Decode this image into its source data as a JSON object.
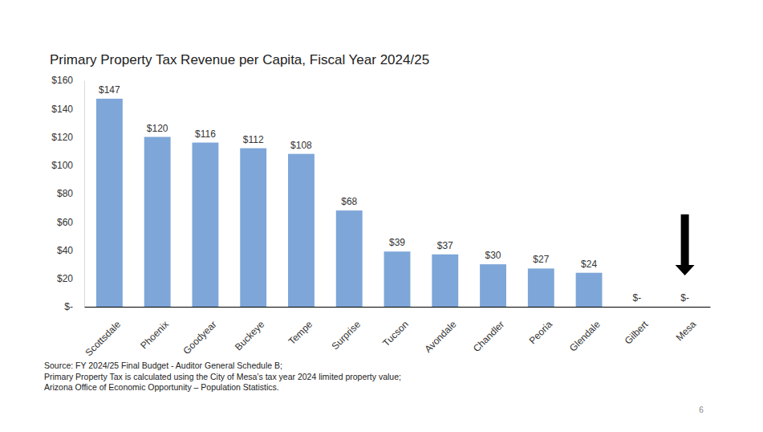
{
  "chart_data": {
    "type": "bar",
    "title": "Primary Property Tax Revenue per Capita, Fiscal Year 2024/25",
    "categories": [
      "Scottsdale",
      "Phoenix",
      "Goodyear",
      "Buckeye",
      "Tempe",
      "Surprise",
      "Tucson",
      "Avondale",
      "Chandler",
      "Peoria",
      "Glendale",
      "Gilbert",
      "Mesa"
    ],
    "values": [
      147,
      120,
      116,
      112,
      108,
      68,
      39,
      37,
      30,
      27,
      24,
      0,
      0
    ],
    "value_labels": [
      "$147",
      "$120",
      "$116",
      "$112",
      "$108",
      "$68",
      "$39",
      "$37",
      "$30",
      "$27",
      "$24",
      "$-",
      "$-"
    ],
    "color": "#7ea6d8",
    "ylim": [
      0,
      160
    ],
    "yticks": [
      {
        "value": 0,
        "label": "$-"
      },
      {
        "value": 20,
        "label": "$20"
      },
      {
        "value": 40,
        "label": "$40"
      },
      {
        "value": 60,
        "label": "$60"
      },
      {
        "value": 80,
        "label": "$80"
      },
      {
        "value": 100,
        "label": "$100"
      },
      {
        "value": 120,
        "label": "$120"
      },
      {
        "value": 140,
        "label": "$140"
      },
      {
        "value": 160,
        "label": "$160"
      }
    ],
    "grid": false,
    "data_labels": true,
    "annotations": [
      "Source: FY 2024/25 Final Budget - Auditor General Schedule B;",
      "Primary Property Tax is calculated using the City of Mesa’s tax year 2024 limited property value;",
      "Arizona Office of Economic Opportunity – Population Statistics."
    ],
    "page_number": 6
  }
}
